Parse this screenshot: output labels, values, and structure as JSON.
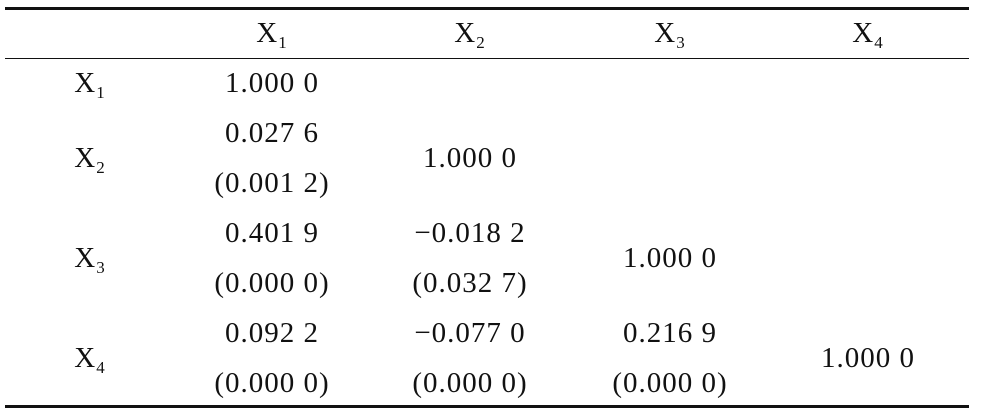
{
  "table": {
    "header": [
      null,
      {
        "base": "X",
        "sub": "1"
      },
      {
        "base": "X",
        "sub": "2"
      },
      {
        "base": "X",
        "sub": "3"
      },
      {
        "base": "X",
        "sub": "4"
      }
    ],
    "rows": [
      {
        "label": {
          "base": "X",
          "sub": "1"
        },
        "cells": [
          [
            "1.000 0"
          ]
        ]
      },
      {
        "label": {
          "base": "X",
          "sub": "2"
        },
        "cells": [
          [
            "0.027 6",
            "(0.001 2)"
          ],
          [
            "1.000 0"
          ]
        ]
      },
      {
        "label": {
          "base": "X",
          "sub": "3"
        },
        "cells": [
          [
            "0.401 9",
            "(0.000 0)"
          ],
          [
            "−0.018 2",
            "(0.032 7)"
          ],
          [
            "1.000 0"
          ]
        ]
      },
      {
        "label": {
          "base": "X",
          "sub": "4"
        },
        "cells": [
          [
            "0.092 2",
            "(0.000 0)"
          ],
          [
            "−0.077 0",
            "(0.000 0)"
          ],
          [
            "0.216 9",
            "(0.000 0)"
          ],
          [
            "1.000 0"
          ]
        ]
      }
    ]
  }
}
